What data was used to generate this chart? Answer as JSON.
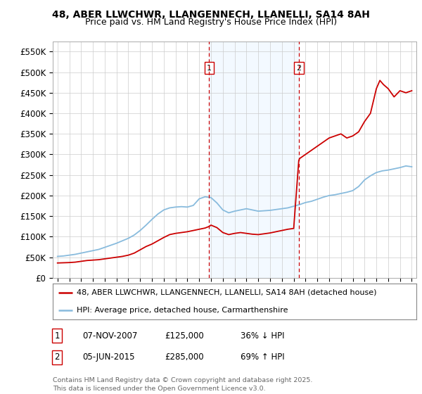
{
  "title_line1": "48, ABER LLWCHWR, LLANGENNECH, LLANELLI, SA14 8AH",
  "title_line2": "Price paid vs. HM Land Registry's House Price Index (HPI)",
  "background_color": "#ffffff",
  "plot_bg_color": "#ffffff",
  "grid_color": "#cccccc",
  "red_line_color": "#cc0000",
  "blue_line_color": "#88bbdd",
  "marker1_x": 2007.85,
  "marker2_x": 2015.43,
  "legend_entry1": "48, ABER LLWCHWR, LLANGENNECH, LLANELLI, SA14 8AH (detached house)",
  "legend_entry2": "HPI: Average price, detached house, Carmarthenshire",
  "footer": "Contains HM Land Registry data © Crown copyright and database right 2025.\nThis data is licensed under the Open Government Licence v3.0.",
  "ylim_max": 575000,
  "shaded_region_color": "#ddeeff",
  "shaded_alpha": 0.35,
  "red_data": {
    "years": [
      1995.0,
      1995.5,
      1996.0,
      1996.5,
      1997.0,
      1997.5,
      1998.0,
      1998.5,
      1999.0,
      1999.5,
      2000.0,
      2000.5,
      2001.0,
      2001.5,
      2002.0,
      2002.5,
      2003.0,
      2003.5,
      2004.0,
      2004.5,
      2005.0,
      2005.5,
      2006.0,
      2006.5,
      2007.0,
      2007.5,
      2007.85,
      2008.0,
      2008.5,
      2009.0,
      2009.5,
      2010.0,
      2010.5,
      2011.0,
      2011.5,
      2012.0,
      2012.5,
      2013.0,
      2013.5,
      2014.0,
      2014.5,
      2015.0,
      2015.43,
      2015.5,
      2016.0,
      2016.5,
      2017.0,
      2017.5,
      2018.0,
      2018.5,
      2019.0,
      2019.5,
      2020.0,
      2020.5,
      2021.0,
      2021.5,
      2022.0,
      2022.3,
      2022.6,
      2023.0,
      2023.5,
      2024.0,
      2024.5,
      2025.0
    ],
    "values": [
      36000,
      36500,
      37000,
      38000,
      40000,
      42000,
      43000,
      44000,
      46000,
      48000,
      50000,
      52000,
      55000,
      60000,
      68000,
      76000,
      82000,
      90000,
      98000,
      105000,
      108000,
      110000,
      112000,
      115000,
      118000,
      121000,
      125000,
      128000,
      122000,
      110000,
      105000,
      108000,
      110000,
      108000,
      106000,
      105000,
      107000,
      109000,
      112000,
      115000,
      118000,
      120000,
      285000,
      290000,
      300000,
      310000,
      320000,
      330000,
      340000,
      345000,
      350000,
      340000,
      345000,
      355000,
      380000,
      400000,
      460000,
      480000,
      470000,
      460000,
      440000,
      455000,
      450000,
      455000
    ]
  },
  "blue_data": {
    "years": [
      1995.0,
      1995.5,
      1996.0,
      1996.5,
      1997.0,
      1997.5,
      1998.0,
      1998.5,
      1999.0,
      1999.5,
      2000.0,
      2000.5,
      2001.0,
      2001.5,
      2002.0,
      2002.5,
      2003.0,
      2003.5,
      2004.0,
      2004.5,
      2005.0,
      2005.5,
      2006.0,
      2006.5,
      2007.0,
      2007.5,
      2008.0,
      2008.5,
      2009.0,
      2009.5,
      2010.0,
      2010.5,
      2011.0,
      2011.5,
      2012.0,
      2012.5,
      2013.0,
      2013.5,
      2014.0,
      2014.5,
      2015.0,
      2015.5,
      2016.0,
      2016.5,
      2017.0,
      2017.5,
      2018.0,
      2018.5,
      2019.0,
      2019.5,
      2020.0,
      2020.5,
      2021.0,
      2021.5,
      2022.0,
      2022.5,
      2023.0,
      2023.5,
      2024.0,
      2024.5,
      2025.0
    ],
    "values": [
      52000,
      53000,
      55000,
      57000,
      60000,
      63000,
      66000,
      69000,
      74000,
      79000,
      84000,
      90000,
      96000,
      104000,
      115000,
      128000,
      142000,
      155000,
      165000,
      170000,
      172000,
      173000,
      172000,
      176000,
      192000,
      197000,
      195000,
      182000,
      165000,
      158000,
      162000,
      165000,
      168000,
      165000,
      162000,
      163000,
      164000,
      166000,
      168000,
      170000,
      174000,
      178000,
      183000,
      186000,
      191000,
      196000,
      200000,
      202000,
      205000,
      208000,
      212000,
      222000,
      238000,
      248000,
      256000,
      260000,
      262000,
      265000,
      268000,
      272000,
      270000
    ]
  }
}
